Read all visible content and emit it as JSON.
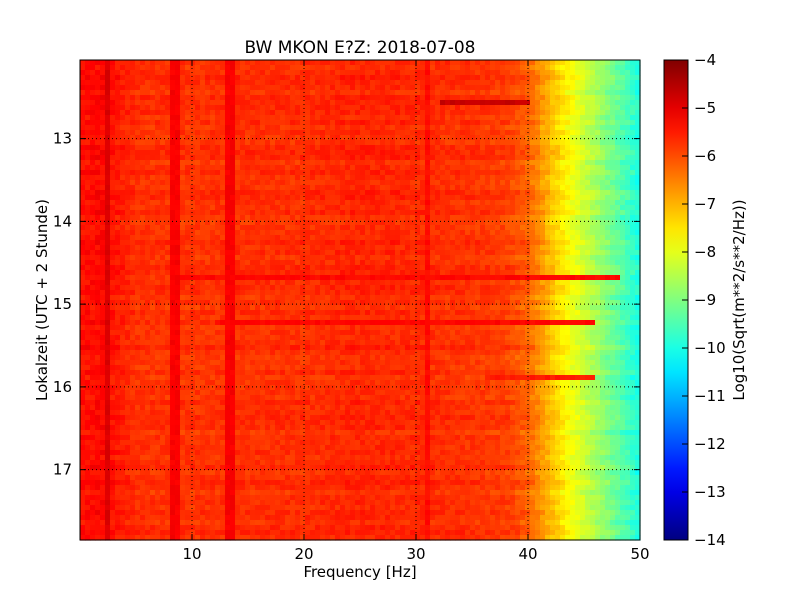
{
  "chart_data": {
    "type": "heatmap",
    "title": "BW MKON E?Z: 2018-07-08",
    "xlabel": "Frequency [Hz]",
    "ylabel": "Lokalzeit (UTC + 2 Stunde)",
    "xlim": [
      0,
      50
    ],
    "ylim": [
      12.05,
      17.85
    ],
    "y_inverted": true,
    "x_ticks": [
      10,
      20,
      30,
      40,
      50
    ],
    "y_ticks": [
      13,
      14,
      15,
      16,
      17
    ],
    "grid": true,
    "colorbar": {
      "label": "Log10(Sqrt(m**2/s**2/Hz))",
      "range": [
        -14,
        -4
      ],
      "ticks": [
        -4,
        -5,
        -6,
        -7,
        -8,
        -9,
        -10,
        -11,
        -12,
        -13,
        -14
      ],
      "colormap": "jet"
    },
    "value_profile_vs_frequency": {
      "frequency_hz": [
        0,
        2,
        5,
        10,
        15,
        20,
        25,
        30,
        35,
        38,
        40,
        42,
        44,
        46,
        48,
        50
      ],
      "log10_amplitude": [
        -5.4,
        -5.3,
        -5.7,
        -5.75,
        -5.7,
        -5.7,
        -5.6,
        -5.65,
        -5.75,
        -5.85,
        -6.2,
        -7.1,
        -7.9,
        -8.6,
        -9.3,
        -10.0
      ]
    },
    "vertical_features_hz": [
      {
        "frequency": 2.5,
        "log10_amplitude": -4.9
      },
      {
        "frequency": 8.5,
        "log10_amplitude": -5.2
      },
      {
        "frequency": 13.3,
        "log10_amplitude": -5.2
      },
      {
        "frequency": 31,
        "log10_amplitude": -5.35
      }
    ],
    "horizontal_features": [
      {
        "time": 12.55,
        "f_start": 32,
        "f_end": 40,
        "log10_amplitude": -4.7
      },
      {
        "time": 14.7,
        "f_start": 8,
        "f_end": 48,
        "log10_amplitude": -5.3
      },
      {
        "time": 15.2,
        "f_start": 12,
        "f_end": 46,
        "log10_amplitude": -5.3
      },
      {
        "time": 15.9,
        "f_start": 36,
        "f_end": 46,
        "log10_amplitude": -5.5
      }
    ]
  }
}
